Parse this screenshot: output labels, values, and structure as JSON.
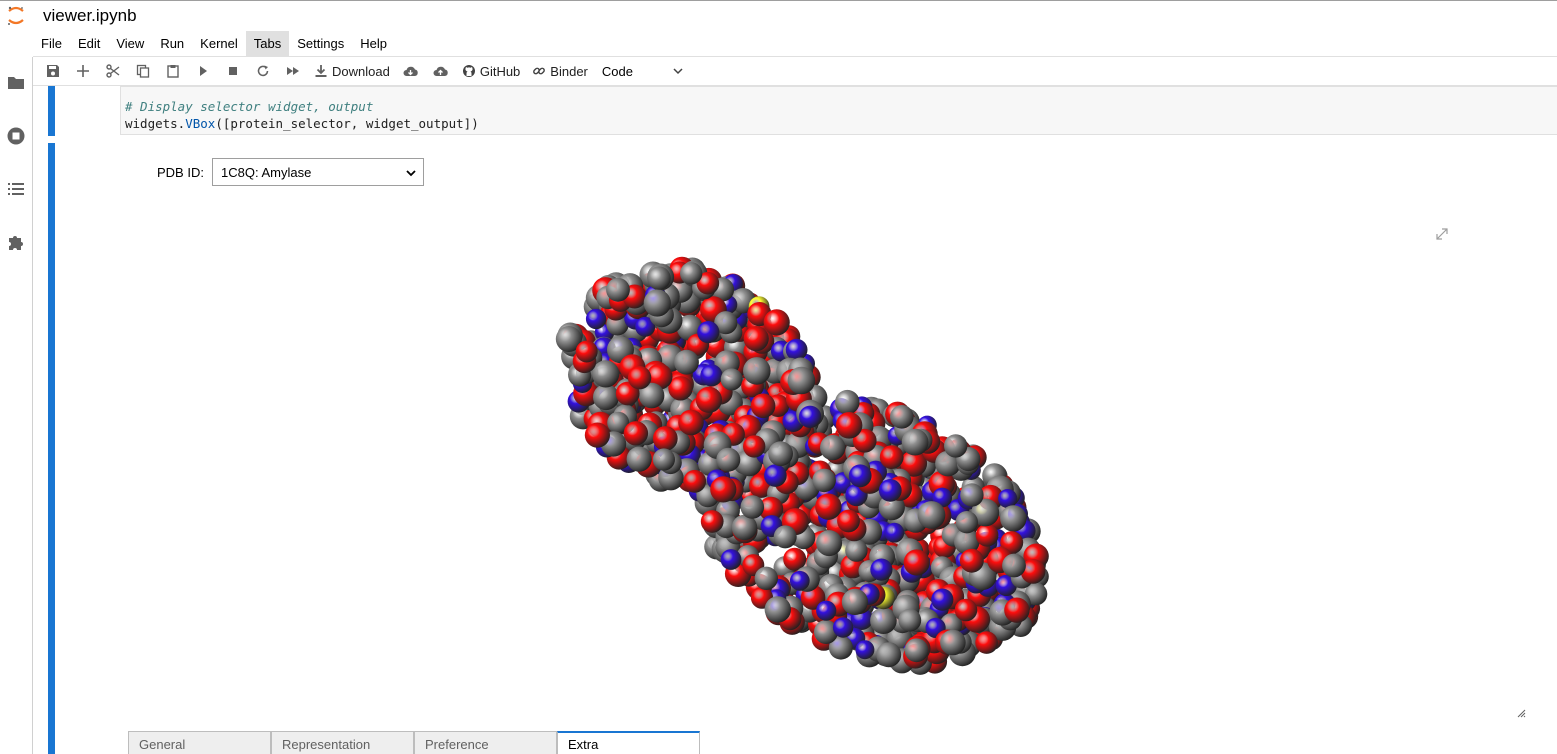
{
  "app": {
    "notebook_title": "viewer.ipynb"
  },
  "menu": {
    "items": [
      "File",
      "Edit",
      "View",
      "Run",
      "Kernel",
      "Tabs",
      "Settings",
      "Help"
    ],
    "active": "Tabs"
  },
  "sidebar": {
    "icons": [
      "folder-icon",
      "running-icon",
      "toc-icon",
      "extension-icon"
    ]
  },
  "toolbar": {
    "download_label": "Download",
    "github_label": "GitHub",
    "binder_label": "Binder",
    "cell_type": "Code"
  },
  "code_cell": {
    "comment": "# Display selector widget, output",
    "line2_prefix": "widgets.",
    "line2_attr": "VBox",
    "line2_suffix": "([protein_selector, widget_output])"
  },
  "output": {
    "pdb_label": "PDB ID:",
    "pdb_selected": "1C8Q: Amylase",
    "tabs": [
      "General",
      "Representation",
      "Preference",
      "Extra"
    ],
    "active_tab": "Extra"
  },
  "colors": {
    "accent": "#1976d2",
    "oxygen": "#ff0d0d",
    "carbon": "#909090",
    "nitrogen": "#3310e0",
    "sulfur": "#ffff30"
  }
}
